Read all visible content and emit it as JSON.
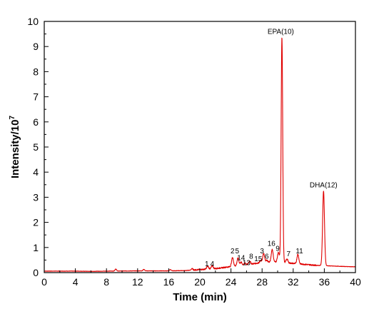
{
  "chart_data": {
    "type": "line",
    "title": "",
    "xlabel": "Time (min)",
    "ylabel": "Intensity/10",
    "ylabel_superscript": "7",
    "xlim": [
      0,
      40
    ],
    "ylim": [
      0,
      10
    ],
    "xticks": [
      0,
      4,
      8,
      12,
      16,
      20,
      24,
      28,
      32,
      36,
      40
    ],
    "yticks": [
      0,
      1,
      2,
      3,
      4,
      5,
      6,
      7,
      8,
      9,
      10
    ],
    "grid": false,
    "legend": "none",
    "line_color": "#e00000",
    "baseline_points": [
      [
        0,
        0.06
      ],
      [
        4,
        0.06
      ],
      [
        6,
        0.05
      ],
      [
        8,
        0.06
      ],
      [
        12,
        0.07
      ],
      [
        16,
        0.07
      ],
      [
        18,
        0.08
      ],
      [
        20,
        0.12
      ],
      [
        22,
        0.16
      ],
      [
        24,
        0.24
      ],
      [
        26,
        0.32
      ],
      [
        28,
        0.4
      ],
      [
        29.5,
        0.43
      ],
      [
        30.5,
        0.42
      ],
      [
        31.5,
        0.38
      ],
      [
        33,
        0.34
      ],
      [
        35,
        0.29
      ],
      [
        36.5,
        0.27
      ],
      [
        38,
        0.25
      ],
      [
        40,
        0.23
      ]
    ],
    "peaks": [
      {
        "x": 9.2,
        "height": 0.08,
        "width": 0.1
      },
      {
        "x": 12.8,
        "height": 0.06,
        "width": 0.1
      },
      {
        "x": 16.2,
        "height": 0.05,
        "width": 0.1
      },
      {
        "x": 19.0,
        "height": 0.06,
        "width": 0.1
      },
      {
        "x": 21.0,
        "height": 0.12,
        "width": 0.12
      },
      {
        "x": 21.6,
        "height": 0.12,
        "width": 0.12
      },
      {
        "x": 24.2,
        "height": 0.35,
        "width": 0.12
      },
      {
        "x": 24.9,
        "height": 0.3,
        "width": 0.12
      },
      {
        "x": 25.3,
        "height": 0.12,
        "width": 0.12
      },
      {
        "x": 25.8,
        "height": 0.08,
        "width": 0.1
      },
      {
        "x": 26.4,
        "height": 0.12,
        "width": 0.12
      },
      {
        "x": 27.8,
        "height": 0.08,
        "width": 0.12
      },
      {
        "x": 28.2,
        "height": 0.35,
        "width": 0.12
      },
      {
        "x": 28.6,
        "height": 0.08,
        "width": 0.12
      },
      {
        "x": 29.3,
        "height": 0.5,
        "width": 0.12
      },
      {
        "x": 30.1,
        "height": 0.38,
        "width": 0.12
      },
      {
        "x": 30.55,
        "height": 8.95,
        "width": 0.1
      },
      {
        "x": 31.2,
        "height": 0.15,
        "width": 0.12
      },
      {
        "x": 32.6,
        "height": 0.38,
        "width": 0.12
      },
      {
        "x": 35.9,
        "height": 2.97,
        "width": 0.12
      }
    ],
    "annotations": [
      {
        "text": "1",
        "x": 20.9,
        "y": 0.26
      },
      {
        "text": "4",
        "x": 21.6,
        "y": 0.26
      },
      {
        "text": "2",
        "x": 24.2,
        "y": 0.76
      },
      {
        "text": "5",
        "x": 24.8,
        "y": 0.76
      },
      {
        "text": "14",
        "x": 25.3,
        "y": 0.5
      },
      {
        "text": "8",
        "x": 26.6,
        "y": 0.56
      },
      {
        "text": "13",
        "x": 26.0,
        "y": 0.3
      },
      {
        "text": "3",
        "x": 28.0,
        "y": 0.76
      },
      {
        "text": "15",
        "x": 27.5,
        "y": 0.45
      },
      {
        "text": "6",
        "x": 28.6,
        "y": 0.56
      },
      {
        "text": "16",
        "x": 29.2,
        "y": 1.06
      },
      {
        "text": "9",
        "x": 30.0,
        "y": 0.86
      },
      {
        "text": "7",
        "x": 31.4,
        "y": 0.66
      },
      {
        "text": "11",
        "x": 32.8,
        "y": 0.76
      },
      {
        "text": "EPA(10)",
        "x": 30.4,
        "y": 9.5
      },
      {
        "text": "DHA(12)",
        "x": 35.9,
        "y": 3.4
      }
    ]
  }
}
